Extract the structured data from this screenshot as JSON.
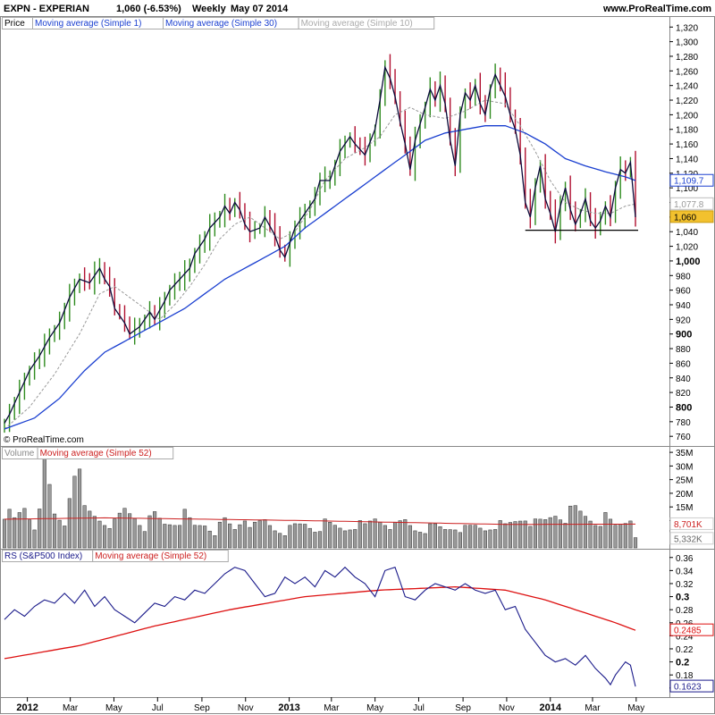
{
  "header": {
    "ticker": "EXPN - EXPERIAN",
    "price_change": "1,060 (-6.53%)",
    "period": "Weekly",
    "date": "May 07 2014",
    "site": "www.ProRealTime.com"
  },
  "copyright": "© ProRealTime.com",
  "colors": {
    "up_bar": "#2e8b1e",
    "down_bar": "#b01030",
    "close_line": "#0a0a3a",
    "ma30": "#1a3fd0",
    "ma10": "#999999",
    "vol_bar": "#9a9a9a",
    "vol_ma": "#cc2020",
    "rs_line": "#1a1a8a",
    "rs_ma": "#dd1010"
  },
  "price_panel": {
    "legend": [
      "Price",
      "Moving average (Simple 1)",
      "Moving average (Simple 30)",
      "Moving average (Simple 10)"
    ],
    "ticks": [
      "1,320",
      "1,300",
      "1,280",
      "1,260",
      "1,240",
      "1,220",
      "1,200",
      "1,180",
      "1,160",
      "1,140",
      "1,120",
      "1,100",
      "1,080",
      "1,060",
      "1,040",
      "1,020",
      "1,000",
      "980",
      "960",
      "940",
      "920",
      "900",
      "880",
      "860",
      "840",
      "820",
      "800",
      "780",
      "760"
    ],
    "bold_ticks": [
      "1,000",
      "900",
      "800"
    ],
    "markers": {
      "ma30": "1,109.7",
      "ma10": "1,077.8",
      "price": "1,060"
    },
    "support_level": 1042
  },
  "volume_panel": {
    "legend": [
      "Volume",
      "Moving average (Simple 52)"
    ],
    "ticks": [
      "35M",
      "30M",
      "25M",
      "20M",
      "15M",
      "10M"
    ],
    "markers": {
      "ma52": "8,701K",
      "volume": "5,332K"
    }
  },
  "rs_panel": {
    "legend": [
      "RS (S&P500 Index)",
      "Moving average (Simple 52)"
    ],
    "ticks": [
      "0.36",
      "0.34",
      "0.32",
      "0.3",
      "0.28",
      "0.26",
      "0.24",
      "0.22",
      "0.2",
      "0.18",
      "0.16"
    ],
    "bold_ticks": [
      "0.3",
      "0.2"
    ],
    "markers": {
      "ma52": "0.2485",
      "rs": "0.1623"
    }
  },
  "x_axis": {
    "labels": [
      "2012",
      "Mar",
      "May",
      "Jul",
      "Sep",
      "Nov",
      "2013",
      "Mar",
      "May",
      "Jul",
      "Sep",
      "Nov",
      "2014",
      "Mar",
      "May"
    ],
    "bold": [
      "2012",
      "2013",
      "2014"
    ]
  },
  "chart_data": {
    "type": "line",
    "title": "EXPN - EXPERIAN Weekly",
    "x_start": "2011-11-30",
    "weeks": 127,
    "price_close_anchors": [
      [
        0,
        778
      ],
      [
        1,
        790
      ],
      [
        2,
        805
      ],
      [
        3,
        820
      ],
      [
        4,
        835
      ],
      [
        5,
        850
      ],
      [
        7,
        870
      ],
      [
        9,
        895
      ],
      [
        11,
        915
      ],
      [
        13,
        950
      ],
      [
        15,
        975
      ],
      [
        17,
        970
      ],
      [
        19,
        990
      ],
      [
        20,
        975
      ],
      [
        21,
        965
      ],
      [
        22,
        935
      ],
      [
        24,
        915
      ],
      [
        25,
        900
      ],
      [
        27,
        910
      ],
      [
        29,
        930
      ],
      [
        30,
        920
      ],
      [
        32,
        945
      ],
      [
        33,
        960
      ],
      [
        35,
        975
      ],
      [
        37,
        990
      ],
      [
        38,
        1010
      ],
      [
        40,
        1030
      ],
      [
        41,
        1045
      ],
      [
        43,
        1060
      ],
      [
        44,
        1075
      ],
      [
        45,
        1065
      ],
      [
        46,
        1080
      ],
      [
        47,
        1070
      ],
      [
        48,
        1050
      ],
      [
        49,
        1040
      ],
      [
        51,
        1045
      ],
      [
        52,
        1060
      ],
      [
        54,
        1035
      ],
      [
        55,
        1015
      ],
      [
        56,
        1005
      ],
      [
        57,
        1025
      ],
      [
        58,
        1045
      ],
      [
        60,
        1065
      ],
      [
        62,
        1085
      ],
      [
        63,
        1110
      ],
      [
        65,
        1110
      ],
      [
        66,
        1130
      ],
      [
        67,
        1150
      ],
      [
        69,
        1170
      ],
      [
        70,
        1160
      ],
      [
        72,
        1145
      ],
      [
        74,
        1180
      ],
      [
        75,
        1220
      ],
      [
        76,
        1265
      ],
      [
        77,
        1250
      ],
      [
        78,
        1225
      ],
      [
        79,
        1190
      ],
      [
        80,
        1160
      ],
      [
        81,
        1125
      ],
      [
        82,
        1165
      ],
      [
        84,
        1210
      ],
      [
        85,
        1235
      ],
      [
        86,
        1220
      ],
      [
        87,
        1240
      ],
      [
        88,
        1215
      ],
      [
        89,
        1165
      ],
      [
        90,
        1130
      ],
      [
        91,
        1200
      ],
      [
        92,
        1230
      ],
      [
        93,
        1220
      ],
      [
        94,
        1240
      ],
      [
        95,
        1215
      ],
      [
        96,
        1200
      ],
      [
        97,
        1235
      ],
      [
        98,
        1255
      ],
      [
        99,
        1240
      ],
      [
        100,
        1225
      ],
      [
        101,
        1200
      ],
      [
        102,
        1180
      ],
      [
        103,
        1145
      ],
      [
        104,
        1080
      ],
      [
        105,
        1060
      ],
      [
        106,
        1100
      ],
      [
        107,
        1130
      ],
      [
        108,
        1085
      ],
      [
        109,
        1065
      ],
      [
        110,
        1040
      ],
      [
        111,
        1075
      ],
      [
        112,
        1100
      ],
      [
        113,
        1070
      ],
      [
        114,
        1050
      ],
      [
        115,
        1065
      ],
      [
        116,
        1085
      ],
      [
        117,
        1055
      ],
      [
        118,
        1045
      ],
      [
        119,
        1055
      ],
      [
        120,
        1075
      ],
      [
        121,
        1060
      ],
      [
        122,
        1100
      ],
      [
        123,
        1125
      ],
      [
        124,
        1120
      ],
      [
        125,
        1135
      ],
      [
        126,
        1060
      ]
    ],
    "ma30_anchors": [
      [
        0,
        770
      ],
      [
        6,
        785
      ],
      [
        11,
        812
      ],
      [
        16,
        850
      ],
      [
        20,
        875
      ],
      [
        24,
        890
      ],
      [
        28,
        905
      ],
      [
        32,
        920
      ],
      [
        36,
        935
      ],
      [
        40,
        955
      ],
      [
        44,
        975
      ],
      [
        48,
        990
      ],
      [
        52,
        1005
      ],
      [
        56,
        1020
      ],
      [
        60,
        1045
      ],
      [
        64,
        1065
      ],
      [
        68,
        1085
      ],
      [
        72,
        1105
      ],
      [
        76,
        1125
      ],
      [
        80,
        1145
      ],
      [
        84,
        1165
      ],
      [
        88,
        1175
      ],
      [
        92,
        1180
      ],
      [
        96,
        1185
      ],
      [
        100,
        1185
      ],
      [
        104,
        1175
      ],
      [
        108,
        1160
      ],
      [
        112,
        1140
      ],
      [
        116,
        1130
      ],
      [
        120,
        1122
      ],
      [
        124,
        1115
      ],
      [
        126,
        1110
      ]
    ],
    "ma10_anchors": [
      [
        0,
        770
      ],
      [
        5,
        800
      ],
      [
        10,
        845
      ],
      [
        15,
        900
      ],
      [
        19,
        955
      ],
      [
        22,
        965
      ],
      [
        25,
        950
      ],
      [
        28,
        935
      ],
      [
        31,
        920
      ],
      [
        34,
        940
      ],
      [
        37,
        965
      ],
      [
        40,
        995
      ],
      [
        43,
        1030
      ],
      [
        46,
        1050
      ],
      [
        49,
        1060
      ],
      [
        52,
        1045
      ],
      [
        55,
        1030
      ],
      [
        58,
        1040
      ],
      [
        61,
        1070
      ],
      [
        64,
        1110
      ],
      [
        68,
        1140
      ],
      [
        72,
        1155
      ],
      [
        75,
        1170
      ],
      [
        78,
        1200
      ],
      [
        81,
        1210
      ],
      [
        84,
        1200
      ],
      [
        88,
        1195
      ],
      [
        92,
        1205
      ],
      [
        96,
        1220
      ],
      [
        100,
        1215
      ],
      [
        103,
        1185
      ],
      [
        106,
        1150
      ],
      [
        109,
        1110
      ],
      [
        112,
        1080
      ],
      [
        115,
        1070
      ],
      [
        118,
        1065
      ],
      [
        121,
        1065
      ],
      [
        124,
        1075
      ],
      [
        126,
        1078
      ]
    ],
    "volume_m_anchors": [
      [
        0,
        14
      ],
      [
        2,
        10
      ],
      [
        4,
        15
      ],
      [
        6,
        8
      ],
      [
        8,
        30
      ],
      [
        10,
        12
      ],
      [
        12,
        9
      ],
      [
        14,
        35
      ],
      [
        16,
        14
      ],
      [
        18,
        12
      ],
      [
        20,
        10
      ],
      [
        22,
        9
      ],
      [
        24,
        14
      ],
      [
        26,
        12
      ],
      [
        28,
        8
      ],
      [
        30,
        12
      ],
      [
        32,
        9
      ],
      [
        34,
        10
      ],
      [
        36,
        12
      ],
      [
        38,
        8
      ],
      [
        40,
        9
      ],
      [
        42,
        6
      ],
      [
        44,
        10
      ],
      [
        46,
        7
      ],
      [
        48,
        12
      ],
      [
        50,
        8
      ],
      [
        52,
        10
      ],
      [
        54,
        7
      ],
      [
        56,
        6
      ],
      [
        58,
        8
      ],
      [
        60,
        9
      ],
      [
        62,
        7
      ],
      [
        64,
        9
      ],
      [
        66,
        8
      ],
      [
        68,
        7
      ],
      [
        70,
        9
      ],
      [
        72,
        8
      ],
      [
        74,
        11
      ],
      [
        76,
        10
      ],
      [
        78,
        8
      ],
      [
        80,
        10
      ],
      [
        82,
        7
      ],
      [
        84,
        7
      ],
      [
        86,
        8
      ],
      [
        88,
        7
      ],
      [
        90,
        8
      ],
      [
        92,
        7
      ],
      [
        94,
        8
      ],
      [
        96,
        7
      ],
      [
        98,
        9
      ],
      [
        100,
        8
      ],
      [
        102,
        10
      ],
      [
        104,
        12
      ],
      [
        106,
        9
      ],
      [
        108,
        10
      ],
      [
        110,
        13
      ],
      [
        112,
        12
      ],
      [
        114,
        14
      ],
      [
        116,
        12
      ],
      [
        118,
        10
      ],
      [
        120,
        11
      ],
      [
        122,
        8
      ],
      [
        124,
        10
      ],
      [
        125,
        12
      ],
      [
        126,
        5
      ]
    ],
    "volume_ma_anchors": [
      [
        0,
        10.5
      ],
      [
        20,
        11
      ],
      [
        40,
        10.5
      ],
      [
        60,
        10
      ],
      [
        80,
        9.3
      ],
      [
        100,
        8.6
      ],
      [
        126,
        8.7
      ]
    ],
    "rs_anchors": [
      [
        0,
        0.265
      ],
      [
        2,
        0.28
      ],
      [
        4,
        0.27
      ],
      [
        6,
        0.285
      ],
      [
        8,
        0.295
      ],
      [
        10,
        0.29
      ],
      [
        12,
        0.305
      ],
      [
        14,
        0.29
      ],
      [
        16,
        0.31
      ],
      [
        18,
        0.285
      ],
      [
        20,
        0.3
      ],
      [
        22,
        0.28
      ],
      [
        24,
        0.27
      ],
      [
        26,
        0.26
      ],
      [
        28,
        0.275
      ],
      [
        30,
        0.29
      ],
      [
        32,
        0.285
      ],
      [
        34,
        0.3
      ],
      [
        36,
        0.295
      ],
      [
        38,
        0.31
      ],
      [
        40,
        0.305
      ],
      [
        42,
        0.32
      ],
      [
        44,
        0.335
      ],
      [
        46,
        0.345
      ],
      [
        48,
        0.34
      ],
      [
        50,
        0.32
      ],
      [
        52,
        0.3
      ],
      [
        54,
        0.305
      ],
      [
        56,
        0.33
      ],
      [
        58,
        0.32
      ],
      [
        60,
        0.33
      ],
      [
        62,
        0.315
      ],
      [
        64,
        0.34
      ],
      [
        66,
        0.33
      ],
      [
        68,
        0.345
      ],
      [
        70,
        0.33
      ],
      [
        72,
        0.32
      ],
      [
        74,
        0.3
      ],
      [
        76,
        0.34
      ],
      [
        78,
        0.345
      ],
      [
        80,
        0.3
      ],
      [
        82,
        0.295
      ],
      [
        84,
        0.31
      ],
      [
        86,
        0.32
      ],
      [
        88,
        0.315
      ],
      [
        90,
        0.31
      ],
      [
        92,
        0.32
      ],
      [
        94,
        0.31
      ],
      [
        96,
        0.305
      ],
      [
        98,
        0.31
      ],
      [
        100,
        0.28
      ],
      [
        102,
        0.285
      ],
      [
        104,
        0.25
      ],
      [
        106,
        0.23
      ],
      [
        108,
        0.21
      ],
      [
        110,
        0.2
      ],
      [
        112,
        0.205
      ],
      [
        114,
        0.195
      ],
      [
        116,
        0.21
      ],
      [
        118,
        0.19
      ],
      [
        120,
        0.175
      ],
      [
        121,
        0.165
      ],
      [
        122,
        0.18
      ],
      [
        124,
        0.2
      ],
      [
        125,
        0.195
      ],
      [
        126,
        0.1623
      ]
    ],
    "rs_ma_anchors": [
      [
        0,
        0.205
      ],
      [
        15,
        0.225
      ],
      [
        30,
        0.255
      ],
      [
        45,
        0.28
      ],
      [
        60,
        0.3
      ],
      [
        75,
        0.31
      ],
      [
        90,
        0.315
      ],
      [
        100,
        0.31
      ],
      [
        108,
        0.295
      ],
      [
        116,
        0.275
      ],
      [
        122,
        0.26
      ],
      [
        126,
        0.2485
      ]
    ]
  }
}
